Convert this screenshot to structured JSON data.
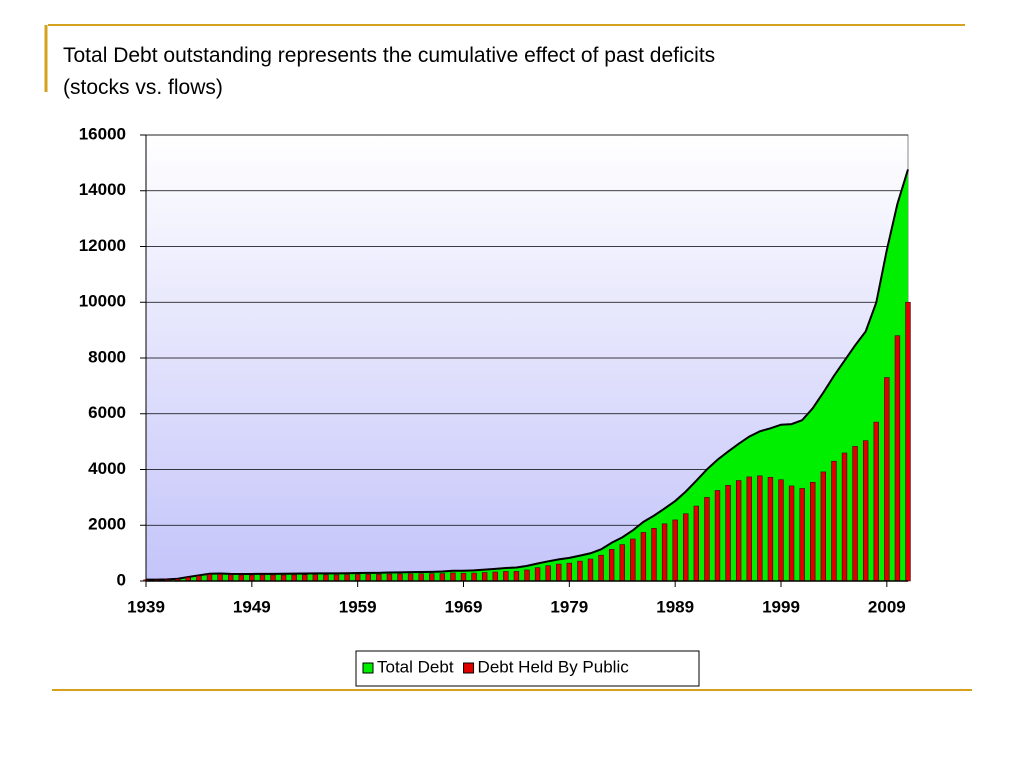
{
  "chart_data": {
    "type": "area-bar",
    "title": "Total Debt outstanding represents the cumulative effect of past deficits",
    "subtitle": "(stocks vs. flows)",
    "x": [
      1939,
      1940,
      1941,
      1942,
      1943,
      1944,
      1945,
      1946,
      1947,
      1948,
      1949,
      1950,
      1951,
      1952,
      1953,
      1954,
      1955,
      1956,
      1957,
      1958,
      1959,
      1960,
      1961,
      1962,
      1963,
      1964,
      1965,
      1966,
      1967,
      1968,
      1969,
      1970,
      1971,
      1972,
      1973,
      1974,
      1975,
      1976,
      1977,
      1978,
      1979,
      1980,
      1981,
      1982,
      1983,
      1984,
      1985,
      1986,
      1987,
      1988,
      1989,
      1990,
      1991,
      1992,
      1993,
      1994,
      1995,
      1996,
      1997,
      1998,
      1999,
      2000,
      2001,
      2002,
      2003,
      2004,
      2005,
      2006,
      2007,
      2008,
      2009,
      2010,
      2011
    ],
    "series": [
      {
        "name": "Total Debt",
        "color": "#00ee00",
        "kind": "area",
        "values": [
          48,
          51,
          58,
          79,
          143,
          204,
          260,
          271,
          257,
          252,
          253,
          257,
          255,
          259,
          266,
          271,
          274,
          273,
          272,
          280,
          288,
          291,
          293,
          303,
          311,
          317,
          322,
          328,
          340,
          369,
          366,
          381,
          408,
          436,
          466,
          484,
          542,
          629,
          706,
          777,
          829,
          909,
          995,
          1137,
          1372,
          1565,
          1817,
          2121,
          2346,
          2601,
          2868,
          3206,
          3598,
          4002,
          4351,
          4643,
          4921,
          5181,
          5369,
          5478,
          5606,
          5629,
          5770,
          6198,
          6760,
          7355,
          7905,
          8451,
          8951,
          9986,
          11876,
          13529,
          14764
        ]
      },
      {
        "name": "Debt Held By Public",
        "color": "#e00000",
        "kind": "bar",
        "values": [
          41,
          43,
          49,
          68,
          127,
          184,
          235,
          242,
          224,
          216,
          214,
          219,
          214,
          215,
          218,
          224,
          227,
          222,
          219,
          226,
          235,
          237,
          238,
          248,
          254,
          257,
          261,
          264,
          267,
          290,
          278,
          283,
          303,
          322,
          341,
          344,
          395,
          477,
          549,
          607,
          640,
          712,
          789,
          925,
          1137,
          1307,
          1507,
          1741,
          1890,
          2052,
          2190,
          2412,
          2689,
          2999,
          3248,
          3433,
          3604,
          3734,
          3772,
          3721,
          3632,
          3410,
          3320,
          3540,
          3913,
          4296,
          4592,
          4829,
          5035,
          5700,
          7300,
          8800,
          10000
        ]
      }
    ],
    "xlim": [
      1939,
      2011
    ],
    "xticks": [
      1939,
      1949,
      1959,
      1969,
      1979,
      1989,
      1999,
      2009
    ],
    "ylim": [
      0,
      16000
    ],
    "yticks": [
      0,
      2000,
      4000,
      6000,
      8000,
      10000,
      12000,
      14000,
      16000
    ],
    "grid": true,
    "legend": "bottom"
  }
}
